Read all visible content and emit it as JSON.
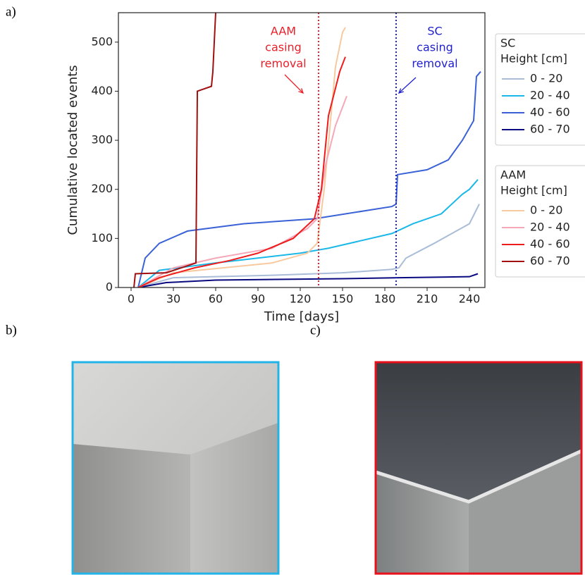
{
  "panels": [
    "a)",
    "b)",
    "c)"
  ],
  "chart_data": {
    "type": "line",
    "x_label": "Time [days]",
    "y_label": "Cumulative located events",
    "xlim": [
      -9,
      251
    ],
    "ylim": [
      0,
      560
    ],
    "xticks": [
      0,
      30,
      60,
      90,
      120,
      150,
      180,
      210,
      240
    ],
    "yticks": [
      0,
      100,
      200,
      300,
      400,
      500
    ],
    "vlines": [
      {
        "x": 133,
        "color": "#e8202a"
      },
      {
        "x": 188,
        "color": "#2020d0"
      }
    ],
    "annotations": [
      {
        "lines": [
          "AAM",
          "casing",
          "removal"
        ],
        "color": "#e8202a"
      },
      {
        "lines": [
          "SC",
          "casing",
          "removal"
        ],
        "color": "#2020d0"
      }
    ],
    "series_groups": [
      {
        "title_lines": [
          "SC",
          "Height [cm]"
        ],
        "series": [
          {
            "name": "0 - 20",
            "color": "#a9bcd8",
            "x": [
              5,
              30,
              100,
              150,
              185,
              190,
              195,
              215,
              240,
              247
            ],
            "values": [
              0,
              20,
              25,
              30,
              37,
              40,
              60,
              90,
              130,
              170
            ]
          },
          {
            "name": "20 - 40",
            "color": "#1ab8e8",
            "x": [
              5,
              20,
              60,
              120,
              140,
              185,
              200,
              220,
              235,
              240,
              246
            ],
            "values": [
              0,
              35,
              50,
              70,
              80,
              110,
              130,
              150,
              190,
              200,
              220
            ]
          },
          {
            "name": "40 - 60",
            "color": "#3a62d6",
            "x": [
              5,
              10,
              20,
              40,
              80,
              130,
              185,
              188,
              189,
              210,
              225,
              235,
              243,
              245,
              248
            ],
            "values": [
              0,
              60,
              90,
              115,
              130,
              140,
              165,
              170,
              230,
              240,
              260,
              300,
              340,
              430,
              440
            ]
          },
          {
            "name": "60 - 70",
            "color": "#0a0a80",
            "x": [
              5,
              25,
              60,
              150,
              190,
              240,
              246
            ],
            "values": [
              0,
              10,
              15,
              18,
              20,
              22,
              28
            ]
          }
        ]
      },
      {
        "title_lines": [
          "AAM",
          "Height [cm]"
        ],
        "series": [
          {
            "name": "0 - 20",
            "color": "#f7c99f",
            "x": [
              5,
              30,
              100,
              125,
              132,
              137,
              145,
              150,
              152
            ],
            "values": [
              0,
              30,
              50,
              70,
              90,
              200,
              450,
              520,
              530
            ]
          },
          {
            "name": "20 - 40",
            "color": "#f4a8b8",
            "x": [
              5,
              30,
              60,
              100,
              125,
              132,
              138,
              145,
              153
            ],
            "values": [
              0,
              40,
              60,
              80,
              120,
              140,
              250,
              330,
              390
            ]
          },
          {
            "name": "40 - 60",
            "color": "#ee1c1c",
            "x": [
              5,
              20,
              45,
              70,
              90,
              115,
              130,
              135,
              140,
              148,
              152
            ],
            "values": [
              0,
              20,
              40,
              55,
              70,
              100,
              140,
              200,
              350,
              440,
              470
            ]
          },
          {
            "name": "60 - 70",
            "color": "#a01010",
            "x": [
              2,
              3,
              25,
              46,
              47,
              57,
              58,
              60
            ],
            "values": [
              0,
              28,
              30,
              50,
              400,
              410,
              440,
              560
            ]
          }
        ]
      }
    ]
  }
}
